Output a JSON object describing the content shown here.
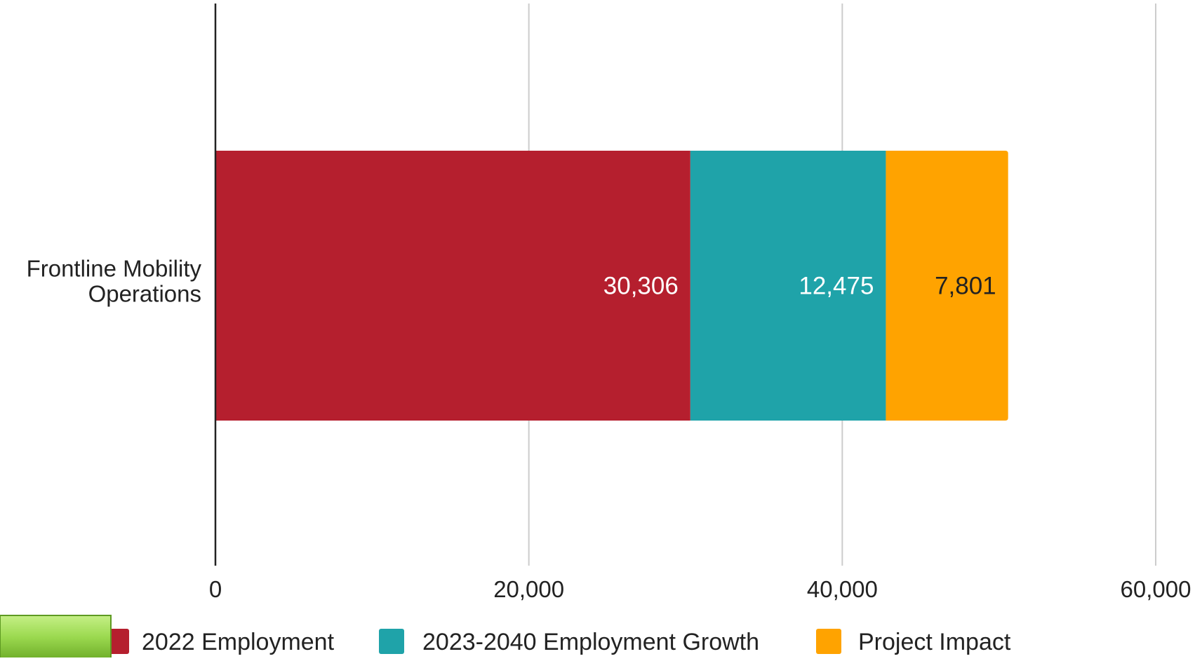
{
  "chart_data": {
    "type": "bar",
    "orientation": "horizontal",
    "stacked": true,
    "categories": [
      "Frontline Mobility Operations"
    ],
    "series": [
      {
        "name": "2022 Employment",
        "values": [
          30306
        ],
        "color": "#b51f2e",
        "label_color": "#ffffff"
      },
      {
        "name": "2023-2040 Employment Growth",
        "values": [
          12475
        ],
        "color": "#1fa3a9",
        "label_color": "#ffffff"
      },
      {
        "name": "Project Impact",
        "values": [
          7801
        ],
        "color": "#ffa300",
        "label_color": "#222222"
      }
    ],
    "data_labels": [
      [
        "30,306"
      ],
      [
        "12,475"
      ],
      [
        "7,801"
      ]
    ],
    "x_ticks": [
      0,
      20000,
      40000,
      60000
    ],
    "x_tick_labels": [
      "0",
      "20,000",
      "40,000",
      "60,000"
    ],
    "xlim": [
      0,
      60000
    ],
    "grid": true,
    "legend_position": "bottom",
    "title": "",
    "xlabel": "",
    "ylabel": ""
  },
  "overlay": {
    "color": "#9bd94f",
    "kind": "green-bar-shape"
  }
}
